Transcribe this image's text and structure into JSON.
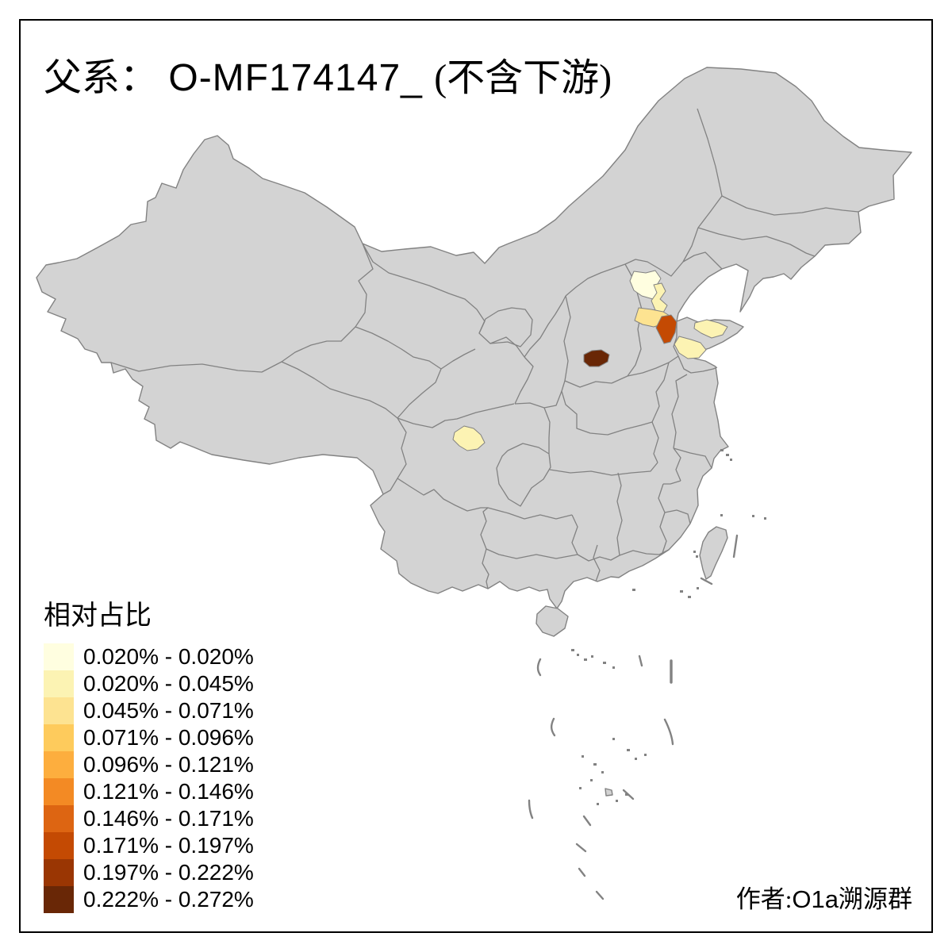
{
  "title": {
    "prefix": "父系：",
    "code": " O-MF174147_ ",
    "suffix": "(不含下游)",
    "full": "父系： O-MF174147_ (不含下游)"
  },
  "attribution": {
    "label_cjk_prefix": "作者:",
    "label_latin": "O1a",
    "label_cjk_suffix": "溯源群",
    "full": "作者:O1a溯源群"
  },
  "legend": {
    "title": "相对占比",
    "items": [
      {
        "range": "0.020% - 0.020%",
        "color": "#FFFEE0"
      },
      {
        "range": "0.020% - 0.045%",
        "color": "#FCF3B3"
      },
      {
        "range": "0.045% - 0.071%",
        "color": "#FDE391"
      },
      {
        "range": "0.071% - 0.096%",
        "color": "#FECB5C"
      },
      {
        "range": "0.096% - 0.121%",
        "color": "#FDAE3E"
      },
      {
        "range": "0.121% - 0.146%",
        "color": "#F38A24"
      },
      {
        "range": "0.146% - 0.171%",
        "color": "#DD6512"
      },
      {
        "range": "0.171% - 0.197%",
        "color": "#C44A03"
      },
      {
        "range": "0.197% - 0.222%",
        "color": "#9A3603"
      },
      {
        "range": "0.222% - 0.272%",
        "color": "#692706"
      }
    ]
  },
  "map": {
    "land_color": "#D3D3D3",
    "border_color": "#828282",
    "sea_color": "#FFFFFF",
    "frame_color": "#000000",
    "regions": [
      {
        "area": "beijing-area",
        "class_index": 1,
        "color": "#FFFEE0"
      },
      {
        "area": "tianjin-strip",
        "class_index": 2,
        "color": "#FCF3B3"
      },
      {
        "area": "baoding-area",
        "class_index": 3,
        "color": "#FDE391"
      },
      {
        "area": "shijiazhuang-area",
        "class_index": 8,
        "color": "#C44A03"
      },
      {
        "area": "shanxi-west-area",
        "class_index": 10,
        "color": "#692706"
      },
      {
        "area": "shandong-north",
        "class_index": 2,
        "color": "#FCF3B3"
      },
      {
        "area": "shandong-south",
        "class_index": 2,
        "color": "#FCF3B3"
      },
      {
        "area": "chengdu-area",
        "class_index": 2,
        "color": "#FCF3B3"
      }
    ]
  }
}
